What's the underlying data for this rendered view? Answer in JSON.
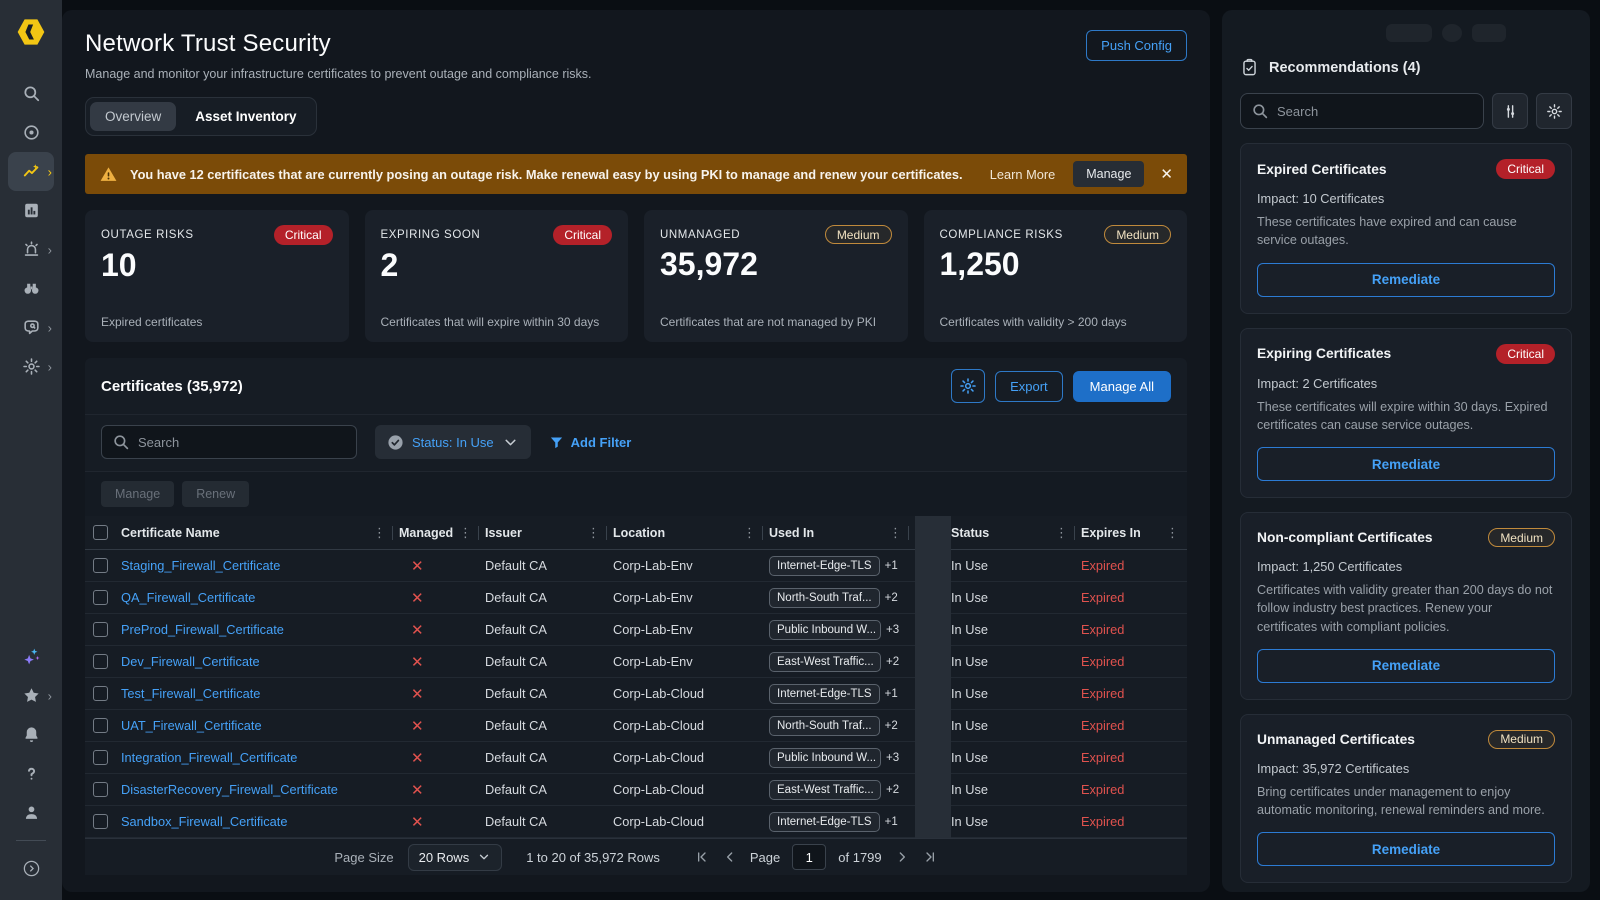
{
  "colors": {
    "accent_blue": "#45a1f7",
    "critical_red": "#b42129",
    "medium_orange": "#c08a3c",
    "warning_banner": "#7b4b08",
    "expired_red": "#e0524e",
    "brand_yellow": "#f3c614"
  },
  "sidebar": {
    "items": [
      {
        "icon": "search",
        "chevron": false,
        "active": false
      },
      {
        "icon": "target",
        "chevron": false,
        "active": false
      },
      {
        "icon": "network-trust",
        "chevron": true,
        "active": true
      },
      {
        "icon": "reports",
        "chevron": false,
        "active": false
      },
      {
        "icon": "incidents",
        "chevron": true,
        "active": false
      },
      {
        "icon": "discover",
        "chevron": false,
        "active": false
      },
      {
        "icon": "policies",
        "chevron": true,
        "active": false
      },
      {
        "icon": "settings",
        "chevron": true,
        "active": false
      }
    ],
    "bottom_items": [
      {
        "icon": "ai-sparkles",
        "chevron": false,
        "active": false
      },
      {
        "icon": "favorites",
        "chevron": true,
        "active": false
      },
      {
        "icon": "notifications",
        "chevron": false,
        "active": false
      },
      {
        "icon": "help",
        "chevron": false,
        "active": false
      },
      {
        "icon": "user",
        "chevron": false,
        "active": false
      }
    ]
  },
  "header": {
    "title": "Network Trust Security",
    "subtitle": "Manage and monitor your infrastructure certificates to prevent outage and compliance risks.",
    "push_config_label": "Push Config",
    "tabs": [
      {
        "label": "Overview",
        "selected": true
      },
      {
        "label": "Asset Inventory",
        "selected": false
      }
    ]
  },
  "banner": {
    "text": "You have 12 certificates that are currently posing an outage risk. Make renewal easy by using PKI to manage and renew your certificates.",
    "learn_more_label": "Learn More",
    "manage_label": "Manage"
  },
  "stats": [
    {
      "label": "OUTAGE RISKS",
      "value": "10",
      "severity": "Critical",
      "description": "Expired certificates"
    },
    {
      "label": "EXPIRING SOON",
      "value": "2",
      "severity": "Critical",
      "description": "Certificates that will expire within 30 days"
    },
    {
      "label": "UNMANAGED",
      "value": "35,972",
      "severity": "Medium",
      "description": "Certificates that are not managed by PKI"
    },
    {
      "label": "COMPLIANCE RISKS",
      "value": "1,250",
      "severity": "Medium",
      "description": "Certificates with validity > 200 days"
    }
  ],
  "certificates": {
    "title": "Certificates (35,972)",
    "export_label": "Export",
    "manage_all_label": "Manage All",
    "search_placeholder": "Search",
    "status_filter_label": "Status: In Use",
    "add_filter_label": "Add Filter",
    "manage_label": "Manage",
    "renew_label": "Renew",
    "columns": [
      "Certificate Name",
      "Managed",
      "Issuer",
      "Location",
      "Used In",
      "Status",
      "Expires In"
    ],
    "rows": [
      {
        "name": "Staging_Firewall_Certificate",
        "managed": false,
        "issuer": "Default CA",
        "location": "Corp-Lab-Env",
        "used_in": "Internet-Edge-TLS",
        "used_in_more": "+1",
        "status": "In Use",
        "expires_in": "Expired"
      },
      {
        "name": "QA_Firewall_Certificate",
        "managed": false,
        "issuer": "Default CA",
        "location": "Corp-Lab-Env",
        "used_in": "North-South Traf...",
        "used_in_more": "+2",
        "status": "In Use",
        "expires_in": "Expired"
      },
      {
        "name": "PreProd_Firewall_Certificate",
        "managed": false,
        "issuer": "Default CA",
        "location": "Corp-Lab-Env",
        "used_in": "Public Inbound W...",
        "used_in_more": "+3",
        "status": "In Use",
        "expires_in": "Expired"
      },
      {
        "name": "Dev_Firewall_Certificate",
        "managed": false,
        "issuer": "Default CA",
        "location": "Corp-Lab-Env",
        "used_in": "East-West Traffic...",
        "used_in_more": "+2",
        "status": "In Use",
        "expires_in": "Expired"
      },
      {
        "name": "Test_Firewall_Certificate",
        "managed": false,
        "issuer": "Default CA",
        "location": "Corp-Lab-Cloud",
        "used_in": "Internet-Edge-TLS",
        "used_in_more": "+1",
        "status": "In Use",
        "expires_in": "Expired"
      },
      {
        "name": "UAT_Firewall_Certificate",
        "managed": false,
        "issuer": "Default CA",
        "location": "Corp-Lab-Cloud",
        "used_in": "North-South Traf...",
        "used_in_more": "+2",
        "status": "In Use",
        "expires_in": "Expired"
      },
      {
        "name": "Integration_Firewall_Certificate",
        "managed": false,
        "issuer": "Default CA",
        "location": "Corp-Lab-Cloud",
        "used_in": "Public Inbound W...",
        "used_in_more": "+3",
        "status": "In Use",
        "expires_in": "Expired"
      },
      {
        "name": "DisasterRecovery_Firewall_Certificate",
        "managed": false,
        "issuer": "Default CA",
        "location": "Corp-Lab-Cloud",
        "used_in": "East-West Traffic...",
        "used_in_more": "+2",
        "status": "In Use",
        "expires_in": "Expired"
      },
      {
        "name": "Sandbox_Firewall_Certificate",
        "managed": false,
        "issuer": "Default CA",
        "location": "Corp-Lab-Cloud",
        "used_in": "Internet-Edge-TLS",
        "used_in_more": "+1",
        "status": "In Use",
        "expires_in": "Expired"
      }
    ],
    "pagination": {
      "page_size_label": "Page Size",
      "page_size_value": "20 Rows",
      "range_text": "1 to 20 of 35,972 Rows",
      "page_label": "Page",
      "page_value": "1",
      "total_pages_text": "of 1799"
    }
  },
  "recommendations": {
    "title": "Recommendations (4)",
    "search_placeholder": "Search",
    "cards": [
      {
        "title": "Expired Certificates",
        "severity": "Critical",
        "impact": "Impact:  10 Certificates",
        "description": "These certificates have expired and can cause service outages.",
        "action_label": "Remediate"
      },
      {
        "title": "Expiring Certificates",
        "severity": "Critical",
        "impact": "Impact:  2 Certificates",
        "description": "These certificates will expire within 30 days. Expired certificates can cause service outages.",
        "action_label": "Remediate"
      },
      {
        "title": "Non-compliant Certificates",
        "severity": "Medium",
        "impact": "Impact:  1,250 Certificates",
        "description": "Certificates with validity greater than 200 days do not follow industry best practices. Renew your certificates with compliant policies.",
        "action_label": "Remediate"
      },
      {
        "title": "Unmanaged Certificates",
        "severity": "Medium",
        "impact": "Impact:  35,972 Certificates",
        "description": "Bring certificates under management to enjoy automatic monitoring, renewal reminders and more.",
        "action_label": "Remediate"
      }
    ]
  }
}
